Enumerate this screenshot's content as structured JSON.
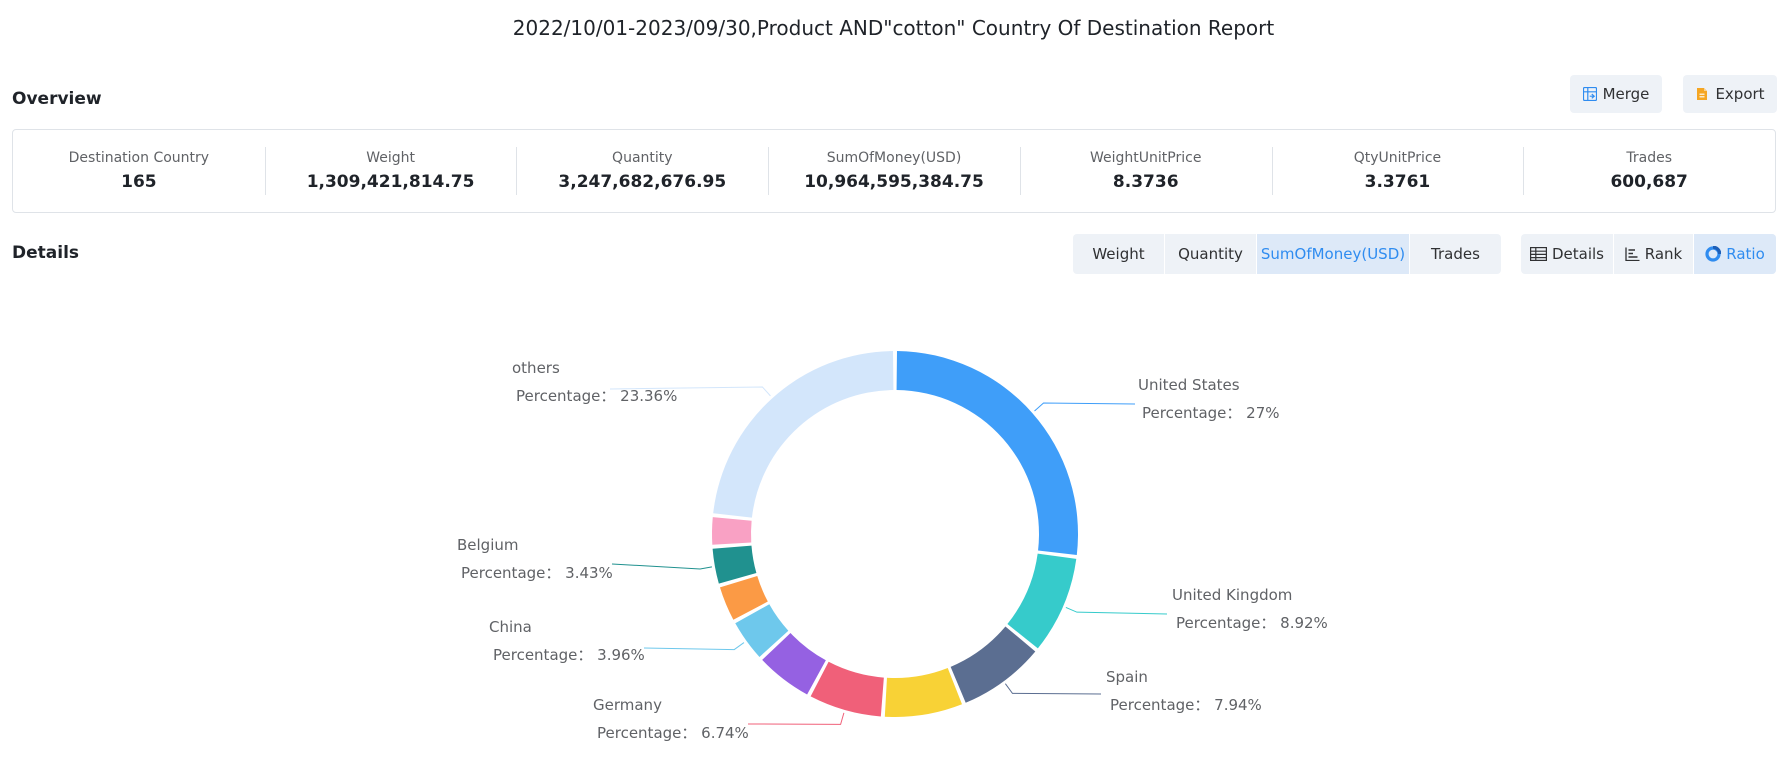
{
  "page": {
    "title": "2022/10/01-2023/09/30,Product AND\"cotton\" Country Of Destination Report"
  },
  "overview": {
    "title": "Overview",
    "merge_label": "Merge",
    "export_label": "Export",
    "merge_icon": "merge-icon",
    "export_icon": "export-icon",
    "metrics": [
      {
        "label": "Destination Country",
        "value": "165"
      },
      {
        "label": "Weight",
        "value": "1,309,421,814.75"
      },
      {
        "label": "Quantity",
        "value": "3,247,682,676.95"
      },
      {
        "label": "SumOfMoney(USD)",
        "value": "10,964,595,384.75"
      },
      {
        "label": "WeightUnitPrice",
        "value": "8.3736"
      },
      {
        "label": "QtyUnitPrice",
        "value": "3.3761"
      },
      {
        "label": "Trades",
        "value": "600,687"
      }
    ]
  },
  "details": {
    "title": "Details",
    "metric_tabs": [
      {
        "label": "Weight",
        "active": false
      },
      {
        "label": "Quantity",
        "active": false
      },
      {
        "label": "SumOfMoney(USD)",
        "active": true
      },
      {
        "label": "Trades",
        "active": false
      }
    ],
    "view_tabs": [
      {
        "label": "Details",
        "icon": "table-icon",
        "active": false
      },
      {
        "label": "Rank",
        "icon": "rank-icon",
        "active": false
      },
      {
        "label": "Ratio",
        "icon": "ratio-icon",
        "active": true
      }
    ]
  },
  "chart_data": {
    "type": "pie",
    "variant": "donut",
    "metric": "SumOfMoney(USD)",
    "percentage_label": "Percentage",
    "slices": [
      {
        "name": "United States",
        "value": 27.0,
        "color": "#3f9ef9",
        "label": "27%",
        "show_label": true
      },
      {
        "name": "United Kingdom",
        "value": 8.92,
        "color": "#36cbcb",
        "label": "8.92%",
        "show_label": true
      },
      {
        "name": "Spain",
        "value": 7.94,
        "color": "#5b6e91",
        "label": "7.94%",
        "show_label": true
      },
      {
        "name": "",
        "value": 7.2,
        "color": "#f8d236",
        "label": "",
        "show_label": false
      },
      {
        "name": "Germany",
        "value": 6.74,
        "color": "#f06079",
        "label": "6.74%",
        "show_label": true
      },
      {
        "name": "",
        "value": 5.3,
        "color": "#9561e2",
        "label": "",
        "show_label": false
      },
      {
        "name": "China",
        "value": 3.96,
        "color": "#6ec8ec",
        "label": "3.96%",
        "show_label": true
      },
      {
        "name": "",
        "value": 3.4,
        "color": "#fb9a45",
        "label": "",
        "show_label": false
      },
      {
        "name": "Belgium",
        "value": 3.43,
        "color": "#20918f",
        "label": "3.43%",
        "show_label": true
      },
      {
        "name": "",
        "value": 2.75,
        "color": "#f9a1c4",
        "label": "",
        "show_label": false
      },
      {
        "name": "others",
        "value": 23.36,
        "color": "#d3e6fb",
        "label": "23.36%",
        "show_label": true
      }
    ]
  }
}
